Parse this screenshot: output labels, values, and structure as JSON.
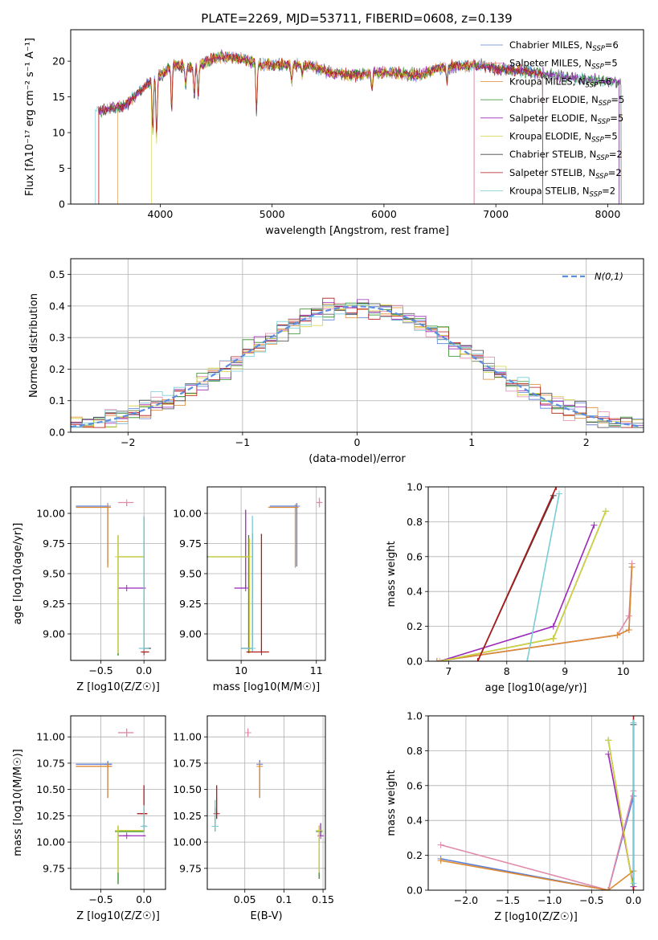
{
  "figure_title": "PLATE=2269, MJD=53711, FIBERID=0608, z=0.139",
  "colors": [
    "#5b7fd6",
    "#e18aac",
    "#de8a33",
    "#2e8b23",
    "#9b28b8",
    "#d6d13f",
    "#444444",
    "#b01818",
    "#78ccd6"
  ],
  "models": [
    "Chabrier MILES",
    "Salpeter MILES",
    "Kroupa MILES",
    "Chabrier ELODIE",
    "Salpeter ELODIE",
    "Kroupa ELODIE",
    "Chabrier STELIB",
    "Salpeter STELIB",
    "Kroupa STELIB"
  ],
  "chart_data": [
    {
      "id": "spectrum",
      "type": "line",
      "xlabel": "wavelength [Angstrom, rest frame]",
      "ylabel": "Flux [fλ10⁻¹⁷ erg cm⁻² s⁻¹ A⁻¹]",
      "xlim": [
        3200,
        8320
      ],
      "ylim": [
        0,
        24.4
      ],
      "xticks": [
        4000,
        5000,
        6000,
        7000,
        8000
      ],
      "yticks": [
        0,
        5,
        10,
        15,
        20
      ],
      "grid": false,
      "legend_position": "top-right",
      "legend": [
        "Chabrier MILES, N_SSP=6",
        "Salpeter MILES, N_SSP=5",
        "Kroupa MILES, N_SSP=6",
        "Chabrier ELODIE, N_SSP=5",
        "Salpeter ELODIE, N_SSP=5",
        "Kroupa ELODIE, N_SSP=5",
        "Chabrier STELIB, N_SSP=2",
        "Salpeter STELIB, N_SSP=2",
        "Kroupa STELIB, N_SSP=2"
      ],
      "continuum": [
        [
          3450,
          13
        ],
        [
          3600,
          13.5
        ],
        [
          3700,
          14
        ],
        [
          3800,
          15.5
        ],
        [
          3900,
          17
        ],
        [
          4000,
          18
        ],
        [
          4100,
          19.5
        ],
        [
          4300,
          19
        ],
        [
          4500,
          20.5
        ],
        [
          4700,
          20.5
        ],
        [
          4900,
          19.5
        ],
        [
          5100,
          19.5
        ],
        [
          5300,
          19.5
        ],
        [
          5500,
          18.5
        ],
        [
          5700,
          18
        ],
        [
          6000,
          18.5
        ],
        [
          6300,
          18
        ],
        [
          6500,
          19
        ],
        [
          6800,
          19.5
        ],
        [
          7000,
          19
        ],
        [
          7300,
          18.5
        ],
        [
          7500,
          18
        ],
        [
          7800,
          17.5
        ],
        [
          8100,
          17
        ]
      ],
      "absorption_features": [
        [
          3934,
          10
        ],
        [
          3968,
          9
        ],
        [
          4102,
          13
        ],
        [
          4227,
          16.5
        ],
        [
          4304,
          15
        ],
        [
          4340,
          15
        ],
        [
          4861,
          13
        ],
        [
          5175,
          17
        ],
        [
          5270,
          18
        ],
        [
          5893,
          16
        ],
        [
          6563,
          17
        ]
      ]
    },
    {
      "id": "residual_histogram",
      "type": "histogram",
      "xlabel": "(data-model)/error",
      "ylabel": "Normed distribution",
      "xlim": [
        -2.5,
        2.5
      ],
      "ylim": [
        0,
        0.55
      ],
      "xticks": [
        -2,
        -1,
        0,
        1,
        2
      ],
      "yticks": [
        0.0,
        0.1,
        0.2,
        0.3,
        0.4,
        0.5
      ],
      "grid": true,
      "legend": [
        "N(0,1)"
      ],
      "legend_position": "top-right",
      "bin_width": 0.1,
      "reference_curve": "gaussian(0,1)"
    },
    {
      "id": "metallicity_vs_age",
      "type": "scatter",
      "xlabel": "Z [log10(Z/Z☉)]",
      "ylabel": "age  [log10(age/yr)]",
      "xlim": [
        -0.85,
        0.25
      ],
      "ylim": [
        8.78,
        10.22
      ],
      "xticks": [
        -0.5,
        0.0
      ],
      "yticks": [
        9.0,
        9.25,
        9.5,
        9.75,
        10.0
      ],
      "grid": true,
      "points": [
        {
          "model": "Chabrier MILES",
          "x": -0.42,
          "y": 10.06,
          "xerr": [
            0.37,
            0.0
          ],
          "yerr": [
            0.48,
            0.0
          ]
        },
        {
          "model": "Salpeter MILES",
          "x": -0.2,
          "y": 10.09,
          "xerr": [
            0.1,
            0.08
          ],
          "yerr": [
            0.03,
            0.0
          ]
        },
        {
          "model": "Kroupa MILES",
          "x": -0.42,
          "y": 10.05,
          "xerr": [
            0.37,
            0.0
          ],
          "yerr": [
            0.5,
            0.0
          ]
        },
        {
          "model": "Chabrier ELODIE",
          "x": -0.3,
          "y": 9.64,
          "xerr": [
            0,
            0.3
          ],
          "yerr": [
            0.82,
            0.18
          ]
        },
        {
          "model": "Salpeter ELODIE",
          "x": -0.2,
          "y": 9.38,
          "xerr": [
            0.1,
            0.22
          ],
          "yerr": [
            0,
            0
          ]
        },
        {
          "model": "Kroupa ELODIE",
          "x": -0.3,
          "y": 9.64,
          "xerr": [
            0,
            0.3
          ],
          "yerr": [
            0.8,
            0.18
          ]
        },
        {
          "model": "Chabrier STELIB",
          "x": 0.0,
          "y": 8.88,
          "xerr": [
            0,
            0.08
          ],
          "yerr": [
            0,
            0
          ]
        },
        {
          "model": "Salpeter STELIB",
          "x": 0.0,
          "y": 8.85,
          "xerr": [
            0.02,
            0.06
          ],
          "yerr": [
            0,
            1.12
          ]
        },
        {
          "model": "Kroupa STELIB",
          "x": 0.0,
          "y": 8.88,
          "xerr": [
            0.06,
            0.06
          ],
          "yerr": [
            0,
            1.1
          ]
        }
      ]
    },
    {
      "id": "mass_vs_age",
      "type": "scatter",
      "xlabel": "mass [log10(M/M☉)]",
      "ylabel": "",
      "xlim": [
        9.55,
        11.12
      ],
      "ylim": [
        8.78,
        10.22
      ],
      "xticks": [
        10,
        11
      ],
      "yticks": [
        9.0,
        9.25,
        9.5,
        9.75,
        10.0
      ],
      "grid": true,
      "points": [
        {
          "model": "Chabrier MILES",
          "x": 10.74,
          "y": 10.06,
          "xerr": [
            0.36,
            0.0
          ],
          "yerr": [
            0.5,
            0.02
          ]
        },
        {
          "model": "Salpeter MILES",
          "x": 11.04,
          "y": 10.09,
          "xerr": [
            0.03,
            0.03
          ],
          "yerr": [
            0.04,
            0.04
          ]
        },
        {
          "model": "Kroupa MILES",
          "x": 10.72,
          "y": 10.05,
          "xerr": [
            0.36,
            0.0
          ],
          "yerr": [
            0.5,
            0.02
          ]
        },
        {
          "model": "Chabrier ELODIE",
          "x": 10.1,
          "y": 9.64,
          "xerr": [
            0.55,
            0.0
          ],
          "yerr": [
            0.8,
            0.18
          ]
        },
        {
          "model": "Salpeter ELODIE",
          "x": 10.06,
          "y": 9.38,
          "xerr": [
            0.15,
            0.0
          ],
          "yerr": [
            0,
            0.65
          ]
        },
        {
          "model": "Kroupa ELODIE",
          "x": 10.11,
          "y": 9.64,
          "xerr": [
            0.55,
            0.0
          ],
          "yerr": [
            0.8,
            0.15
          ]
        },
        {
          "model": "Chabrier STELIB",
          "x": 10.15,
          "y": 8.88,
          "xerr": [
            0.15,
            0
          ],
          "yerr": [
            0,
            0.95
          ]
        },
        {
          "model": "Salpeter STELIB",
          "x": 10.27,
          "y": 8.85,
          "xerr": [
            0.2,
            0.1
          ],
          "yerr": [
            0,
            0.98
          ]
        },
        {
          "model": "Kroupa STELIB",
          "x": 10.15,
          "y": 8.88,
          "xerr": [
            0.15,
            0
          ],
          "yerr": [
            0,
            1.1
          ]
        }
      ]
    },
    {
      "id": "age_vs_mass_weight",
      "type": "line",
      "xlabel": "age  [log10(age/yr)]",
      "ylabel": "mass weight",
      "xlim": [
        6.65,
        10.35
      ],
      "ylim": [
        0.0,
        1.0
      ],
      "xticks": [
        7,
        8,
        9,
        10
      ],
      "yticks": [
        0.0,
        0.2,
        0.4,
        0.6,
        0.8,
        1.0
      ],
      "grid": true,
      "series": [
        {
          "model": "Chabrier MILES",
          "x": [
            6.8,
            9.9,
            10.1,
            10.15
          ],
          "y": [
            0.0,
            0.15,
            0.18,
            0.54
          ]
        },
        {
          "model": "Salpeter MILES",
          "x": [
            6.8,
            9.9,
            10.1,
            10.15
          ],
          "y": [
            0.0,
            0.15,
            0.26,
            0.56
          ]
        },
        {
          "model": "Kroupa MILES",
          "x": [
            6.8,
            9.9,
            10.1,
            10.15
          ],
          "y": [
            0.0,
            0.15,
            0.18,
            0.54
          ]
        },
        {
          "model": "Chabrier ELODIE",
          "x": [
            6.85,
            8.8,
            9.7
          ],
          "y": [
            0.0,
            0.13,
            0.86
          ]
        },
        {
          "model": "Salpeter ELODIE",
          "x": [
            6.85,
            8.8,
            9.5
          ],
          "y": [
            0.0,
            0.2,
            0.78
          ]
        },
        {
          "model": "Kroupa ELODIE",
          "x": [
            6.85,
            8.8,
            9.7
          ],
          "y": [
            0.0,
            0.13,
            0.86
          ]
        },
        {
          "model": "Chabrier STELIB",
          "x": [
            7.5,
            8.8
          ],
          "y": [
            0.0,
            0.95
          ]
        },
        {
          "model": "Salpeter STELIB",
          "x": [
            7.5,
            8.85
          ],
          "y": [
            0.0,
            1.0
          ]
        },
        {
          "model": "Kroupa STELIB",
          "x": [
            8.35,
            8.9
          ],
          "y": [
            0.0,
            0.96
          ]
        }
      ]
    },
    {
      "id": "metallicity_vs_mass",
      "type": "scatter",
      "xlabel": "Z [log10(Z/Z☉)]",
      "ylabel": "mass [log10(M/M☉)]",
      "xlim": [
        -0.85,
        0.25
      ],
      "ylim": [
        9.55,
        11.2
      ],
      "xticks": [
        -0.5,
        0.0
      ],
      "yticks": [
        9.75,
        10.0,
        10.25,
        10.5,
        10.75,
        11.0
      ],
      "grid": true,
      "points": [
        {
          "model": "Chabrier MILES",
          "x": -0.42,
          "y": 10.74,
          "xerr": [
            0.37,
            0.05
          ],
          "yerr": [
            0.32,
            0.03
          ]
        },
        {
          "model": "Salpeter MILES",
          "x": -0.2,
          "y": 11.04,
          "xerr": [
            0.1,
            0.08
          ],
          "yerr": [
            0.04,
            0.04
          ]
        },
        {
          "model": "Kroupa MILES",
          "x": -0.42,
          "y": 10.72,
          "xerr": [
            0.37,
            0.05
          ],
          "yerr": [
            0.3,
            0.03
          ]
        },
        {
          "model": "Chabrier ELODIE",
          "x": -0.3,
          "y": 10.1,
          "xerr": [
            0,
            0.3
          ],
          "yerr": [
            0.5,
            0.05
          ]
        },
        {
          "model": "Salpeter ELODIE",
          "x": -0.2,
          "y": 10.06,
          "xerr": [
            0.1,
            0.22
          ],
          "yerr": [
            0,
            0
          ]
        },
        {
          "model": "Kroupa ELODIE",
          "x": -0.3,
          "y": 10.11,
          "xerr": [
            0,
            0.3
          ],
          "yerr": [
            0.4,
            0.05
          ]
        },
        {
          "model": "Chabrier STELIB",
          "x": 0.0,
          "y": 10.15,
          "xerr": [
            0.02,
            0.03
          ],
          "yerr": [
            0.05,
            0.1
          ]
        },
        {
          "model": "Salpeter STELIB",
          "x": 0.0,
          "y": 10.27,
          "xerr": [
            0.08,
            0.04
          ],
          "yerr": [
            0.05,
            0.27
          ]
        },
        {
          "model": "Kroupa STELIB",
          "x": 0.0,
          "y": 10.15,
          "xerr": [
            0.02,
            0.03
          ],
          "yerr": [
            0.05,
            0.2
          ]
        }
      ]
    },
    {
      "id": "ebv_vs_mass",
      "type": "scatter",
      "xlabel": "E(B-V)",
      "ylabel": "",
      "xlim": [
        0.002,
        0.153
      ],
      "ylim": [
        9.55,
        11.2
      ],
      "xticks": [
        0.05,
        0.1,
        0.15
      ],
      "yticks": [
        9.75,
        10.0,
        10.25,
        10.5,
        10.75,
        11.0
      ],
      "grid": true,
      "points": [
        {
          "model": "Chabrier MILES",
          "x": 0.069,
          "y": 10.74,
          "xerr": [
            0,
            0
          ],
          "yerr": [
            0.32,
            0.04
          ]
        },
        {
          "model": "Salpeter MILES",
          "x": 0.054,
          "y": 11.04,
          "xerr": [
            0,
            0
          ],
          "yerr": [
            0.04,
            0.04
          ]
        },
        {
          "model": "Kroupa MILES",
          "x": 0.069,
          "y": 10.72,
          "xerr": [
            0,
            0
          ],
          "yerr": [
            0.3,
            0.04
          ]
        },
        {
          "model": "Chabrier ELODIE",
          "x": 0.145,
          "y": 10.1,
          "xerr": [
            0,
            0
          ],
          "yerr": [
            0.45,
            0.05
          ]
        },
        {
          "model": "Salpeter ELODIE",
          "x": 0.147,
          "y": 10.06,
          "xerr": [
            0,
            0
          ],
          "yerr": [
            0,
            0.12
          ]
        },
        {
          "model": "Kroupa ELODIE",
          "x": 0.145,
          "y": 10.11,
          "xerr": [
            0,
            0
          ],
          "yerr": [
            0.4,
            0.05
          ]
        },
        {
          "model": "Chabrier STELIB",
          "x": 0.012,
          "y": 10.15,
          "xerr": [
            0,
            0
          ],
          "yerr": [
            0.05,
            0.18
          ]
        },
        {
          "model": "Salpeter STELIB",
          "x": 0.014,
          "y": 10.27,
          "xerr": [
            0,
            0
          ],
          "yerr": [
            0.05,
            0.27
          ]
        },
        {
          "model": "Kroupa STELIB",
          "x": 0.012,
          "y": 10.15,
          "xerr": [
            0,
            0
          ],
          "yerr": [
            0.05,
            0.25
          ]
        }
      ]
    },
    {
      "id": "metallicity_vs_mass_weight",
      "type": "line",
      "xlabel": "Z [log10(Z/Z☉)]",
      "ylabel": "mass weight",
      "xlim": [
        -2.45,
        0.12
      ],
      "ylim": [
        0.0,
        1.0
      ],
      "xticks": [
        -2.0,
        -1.5,
        -1.0,
        -0.5,
        0.0
      ],
      "yticks": [
        0.0,
        0.2,
        0.4,
        0.6,
        0.8,
        1.0
      ],
      "grid": true,
      "series": [
        {
          "model": "Chabrier MILES",
          "x": [
            -2.3,
            -0.3,
            0.0
          ],
          "y": [
            0.18,
            0.0,
            0.54
          ]
        },
        {
          "model": "Salpeter MILES",
          "x": [
            -2.3,
            -0.3,
            0.0
          ],
          "y": [
            0.26,
            0.0,
            0.57
          ]
        },
        {
          "model": "Kroupa MILES",
          "x": [
            -2.3,
            -0.3,
            0.0
          ],
          "y": [
            0.17,
            0.0,
            0.11
          ]
        },
        {
          "model": "Chabrier ELODIE",
          "x": [
            -0.3,
            0.0
          ],
          "y": [
            0.86,
            0.0
          ]
        },
        {
          "model": "Salpeter ELODIE",
          "x": [
            -0.3,
            0.0
          ],
          "y": [
            0.78,
            0.02
          ]
        },
        {
          "model": "Kroupa ELODIE",
          "x": [
            -0.3,
            0.0
          ],
          "y": [
            0.86,
            0.0
          ]
        },
        {
          "model": "Chabrier STELIB",
          "x": [
            0.0,
            0.0
          ],
          "y": [
            0.0,
            0.95
          ]
        },
        {
          "model": "Salpeter STELIB",
          "x": [
            0.0,
            0.0
          ],
          "y": [
            0.0,
            1.0
          ]
        },
        {
          "model": "Kroupa STELIB",
          "x": [
            0.0,
            0.0
          ],
          "y": [
            0.04,
            0.96
          ]
        }
      ]
    }
  ]
}
